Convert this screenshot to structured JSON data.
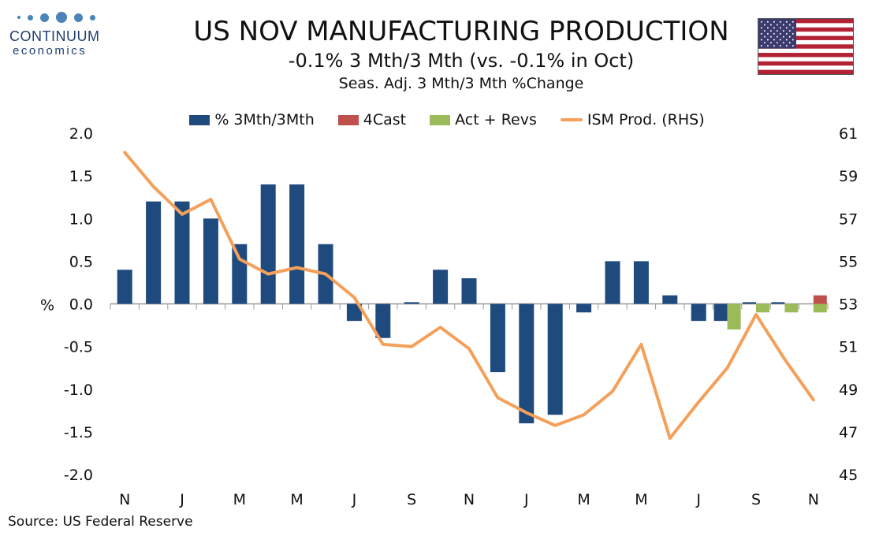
{
  "logo": {
    "name": "CONTINUUM",
    "sub": "economics"
  },
  "header": {
    "title": "US NOV MANUFACTURING PRODUCTION",
    "subtitle": "-0.1% 3 Mth/3 Mth (vs. -0.1% in Oct)",
    "subtitle2": "Seas. Adj. 3 Mth/3 Mth %Change"
  },
  "source": "Source: US Federal Reserve",
  "colors": {
    "main_bar": "#1f4a7e",
    "forecast": "#c0504d",
    "actual_revs": "#9bbb59",
    "ism_line": "#f4a05a"
  },
  "chart_data": {
    "type": "bar",
    "ylabel": "%",
    "ylim": [
      -2.0,
      2.0
    ],
    "y_ticks": [
      "2.0",
      "1.5",
      "1.0",
      "0.5",
      "0.0",
      "-0.5",
      "-1.0",
      "-1.5",
      "-2.0"
    ],
    "y2lim": [
      45,
      61
    ],
    "y2_ticks": [
      "61",
      "59",
      "57",
      "55",
      "53",
      "51",
      "49",
      "47",
      "45"
    ],
    "x_tick_labels": [
      "N",
      "J",
      "M",
      "M",
      "J",
      "S",
      "N",
      "J",
      "M",
      "M",
      "J",
      "S",
      "N"
    ],
    "legend": [
      "% 3Mth/3Mth",
      "4Cast",
      "Act + Revs",
      "ISM Prod. (RHS)"
    ],
    "legend_position": "top",
    "series": [
      {
        "name": "% 3Mth/3Mth",
        "type": "bar",
        "values": [
          0.4,
          1.2,
          1.2,
          1.0,
          0.7,
          1.4,
          1.4,
          0.7,
          -0.2,
          -0.4,
          0.02,
          0.4,
          0.3,
          -0.8,
          -1.4,
          -1.3,
          -0.1,
          0.5,
          0.5,
          0.1,
          -0.2,
          -0.2,
          0.02,
          0.02,
          0.0
        ]
      },
      {
        "name": "4Cast",
        "type": "bar",
        "values": [
          null,
          null,
          null,
          null,
          null,
          null,
          null,
          null,
          null,
          null,
          null,
          null,
          null,
          null,
          null,
          null,
          null,
          null,
          null,
          null,
          null,
          null,
          null,
          null,
          0.1
        ]
      },
      {
        "name": "Act + Revs",
        "type": "bar",
        "values": [
          null,
          null,
          null,
          null,
          null,
          null,
          null,
          null,
          null,
          null,
          null,
          null,
          null,
          null,
          null,
          null,
          null,
          null,
          null,
          null,
          null,
          -0.3,
          -0.1,
          -0.1,
          -0.1
        ]
      },
      {
        "name": "ISM Prod. (RHS)",
        "type": "line",
        "axis": "right",
        "values": [
          60.1,
          58.5,
          57.2,
          57.9,
          55.1,
          54.4,
          54.7,
          54.4,
          53.3,
          51.1,
          51.0,
          51.9,
          50.9,
          48.6,
          47.9,
          47.3,
          47.8,
          48.9,
          51.1,
          46.7,
          48.4,
          50.0,
          52.5,
          50.4,
          48.5
        ]
      }
    ]
  }
}
